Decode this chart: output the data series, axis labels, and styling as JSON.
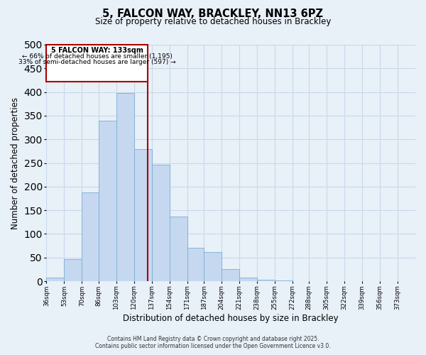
{
  "title": "5, FALCON WAY, BRACKLEY, NN13 6PZ",
  "subtitle": "Size of property relative to detached houses in Brackley",
  "xlabel": "Distribution of detached houses by size in Brackley",
  "ylabel": "Number of detached properties",
  "footer_line1": "Contains HM Land Registry data © Crown copyright and database right 2025.",
  "footer_line2": "Contains public sector information licensed under the Open Government Licence v3.0.",
  "bar_edges": [
    36,
    53,
    70,
    86,
    103,
    120,
    137,
    154,
    171,
    187,
    204,
    221,
    238,
    255,
    272,
    288,
    305,
    322,
    339,
    356,
    373
  ],
  "bar_heights": [
    8,
    47,
    187,
    340,
    398,
    280,
    246,
    137,
    70,
    62,
    25,
    8,
    3,
    1,
    0,
    0,
    0,
    0,
    0,
    0
  ],
  "bar_color": "#c5d8f0",
  "bar_edgecolor": "#7aaed4",
  "vline_x": 133,
  "vline_color": "#aa0000",
  "annotation_title": "5 FALCON WAY: 133sqm",
  "annotation_line1": "← 66% of detached houses are smaller (1,195)",
  "annotation_line2": "33% of semi-detached houses are larger (597) →",
  "annotation_box_color": "#ffffff",
  "annotation_box_edgecolor": "#aa0000",
  "ylim": [
    0,
    500
  ],
  "xlim": [
    36,
    390
  ],
  "tick_labels": [
    "36sqm",
    "53sqm",
    "70sqm",
    "86sqm",
    "103sqm",
    "120sqm",
    "137sqm",
    "154sqm",
    "171sqm",
    "187sqm",
    "204sqm",
    "221sqm",
    "238sqm",
    "255sqm",
    "272sqm",
    "288sqm",
    "305sqm",
    "322sqm",
    "339sqm",
    "356sqm",
    "373sqm"
  ],
  "tick_positions": [
    36,
    53,
    70,
    86,
    103,
    120,
    137,
    154,
    171,
    187,
    204,
    221,
    238,
    255,
    272,
    288,
    305,
    322,
    339,
    356,
    373
  ],
  "grid_color": "#c8d8ea",
  "bg_color": "#e8f0f8"
}
